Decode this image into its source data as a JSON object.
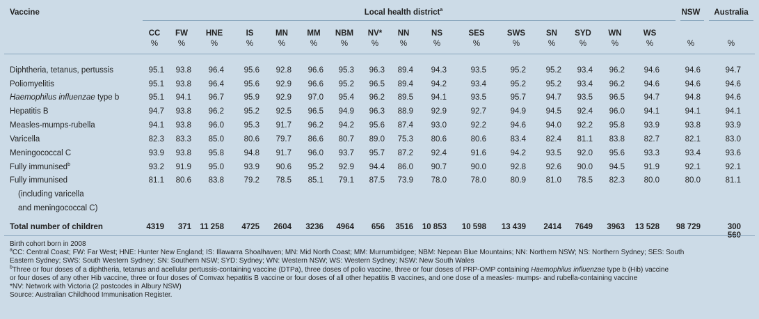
{
  "header": {
    "vaccine_label": "Vaccine",
    "lhd_label": "Local health district",
    "lhd_sup": "a",
    "nsw_label": "NSW",
    "aus_label": "Australia",
    "columns": [
      "CC",
      "FW",
      "HNE",
      "IS",
      "MN",
      "MM",
      "NBM",
      "NV*",
      "NN",
      "NS",
      "SES",
      "SWS",
      "SN",
      "SYD",
      "WN",
      "WS"
    ],
    "unit": "%"
  },
  "rows": [
    {
      "label": "Diphtheria, tetanus, pertussis",
      "values": [
        "95.1",
        "93.8",
        "96.4",
        "95.6",
        "92.8",
        "96.6",
        "95.3",
        "96.3",
        "89.4",
        "94.3",
        "93.5",
        "95.2",
        "95.2",
        "93.4",
        "96.2",
        "94.6",
        "94.6",
        "94.7"
      ]
    },
    {
      "label": "Poliomyelitis",
      "values": [
        "95.1",
        "93.8",
        "96.4",
        "95.6",
        "92.9",
        "96.6",
        "95.2",
        "96.5",
        "89.4",
        "94.2",
        "93.4",
        "95.2",
        "95.2",
        "93.4",
        "96.2",
        "94.6",
        "94.6",
        "94.6"
      ]
    },
    {
      "label_italic": "Haemophilus influenzae",
      "label_rest": " type b",
      "values": [
        "95.1",
        "94.1",
        "96.7",
        "95.9",
        "92.9",
        "97.0",
        "95.4",
        "96.2",
        "89.5",
        "94.1",
        "93.5",
        "95.7",
        "94.7",
        "93.5",
        "96.5",
        "94.7",
        "94.8",
        "94.6"
      ]
    },
    {
      "label": "Hepatitis B",
      "values": [
        "94.7",
        "93.8",
        "96.2",
        "95.2",
        "92.5",
        "96.5",
        "94.9",
        "96.3",
        "88.9",
        "92.9",
        "92.7",
        "94.9",
        "94.5",
        "92.4",
        "96.0",
        "94.1",
        "94.1",
        "94.1"
      ]
    },
    {
      "label": "Measles-mumps-rubella",
      "values": [
        "94.1",
        "93.8",
        "96.0",
        "95.3",
        "91.7",
        "96.2",
        "94.2",
        "95.6",
        "87.4",
        "93.0",
        "92.2",
        "94.6",
        "94.0",
        "92.2",
        "95.8",
        "93.9",
        "93.8",
        "93.9"
      ]
    },
    {
      "label": "Varicella",
      "values": [
        "82.3",
        "83.3",
        "85.0",
        "80.6",
        "79.7",
        "86.6",
        "80.7",
        "89.0",
        "75.3",
        "80.6",
        "80.6",
        "83.4",
        "82.4",
        "81.1",
        "83.8",
        "82.7",
        "82.1",
        "83.0"
      ]
    },
    {
      "label": "Meningococcal C",
      "values": [
        "93.9",
        "93.8",
        "95.8",
        "94.8",
        "91.7",
        "96.0",
        "93.7",
        "95.7",
        "87.2",
        "92.4",
        "91.6",
        "94.2",
        "93.5",
        "92.0",
        "95.6",
        "93.3",
        "93.4",
        "93.6"
      ]
    },
    {
      "label": "Fully immunised",
      "sup": "b",
      "values": [
        "93.2",
        "91.9",
        "95.0",
        "93.9",
        "90.6",
        "95.2",
        "92.9",
        "94.4",
        "86.0",
        "90.7",
        "90.0",
        "92.8",
        "92.6",
        "90.0",
        "94.5",
        "91.9",
        "92.1",
        "92.1"
      ]
    },
    {
      "label": "Fully immunised",
      "label_line2": "(including varicella",
      "label_line3": "and meningococcal C)",
      "values": [
        "81.1",
        "80.6",
        "83.8",
        "79.2",
        "78.5",
        "85.1",
        "79.1",
        "87.5",
        "73.9",
        "78.0",
        "78.0",
        "80.9",
        "81.0",
        "78.5",
        "82.3",
        "80.0",
        "80.0",
        "81.1"
      ]
    }
  ],
  "total": {
    "label": "Total number of children",
    "values": [
      "4319",
      "371",
      "11 258",
      "4725",
      "2604",
      "3236",
      "4964",
      "656",
      "3516",
      "10 853",
      "10 598",
      "13 439",
      "2414",
      "7649",
      "3963",
      "13 528",
      "98 729",
      "300 560"
    ]
  },
  "footnotes": {
    "f1": "Birth cohort born in 2008",
    "f2_sup": "a",
    "f2": "CC: Central Coast; FW: Far West; HNE: Hunter New England; IS: Illawarra Shoalhaven; MN: Mid North Coast; MM: Murrumbidgee; NBM: Nepean Blue Mountains; NN: Northern NSW; NS: Northern Sydney; SES: South",
    "f3": "Eastern Sydney; SWS: South Western Sydney; SN: Southern NSW; SYD: Sydney; WN: Western NSW; WS: Western Sydney; NSW: New South Wales",
    "f4_sup": "b",
    "f4_a": "Three or four doses of a diphtheria, tetanus and acellular pertussis-containing vaccine (DTPa), three doses of polio vaccine, three or four doses of PRP-OMP containing ",
    "f4_italic": "Haemophilus influenzae",
    "f4_b": " type b (Hib) vaccine",
    "f5": "or four doses of any other Hib vaccine, three or four doses of Comvax hepatitis B vaccine or four doses of all other hepatitis B vaccines, and one dose of a measles- mumps- and rubella-containing vaccine",
    "f6": "*NV: Network with Victoria (2 postcodes in Albury NSW)",
    "f7": "Source: Australian Childhood Immunisation Register."
  }
}
